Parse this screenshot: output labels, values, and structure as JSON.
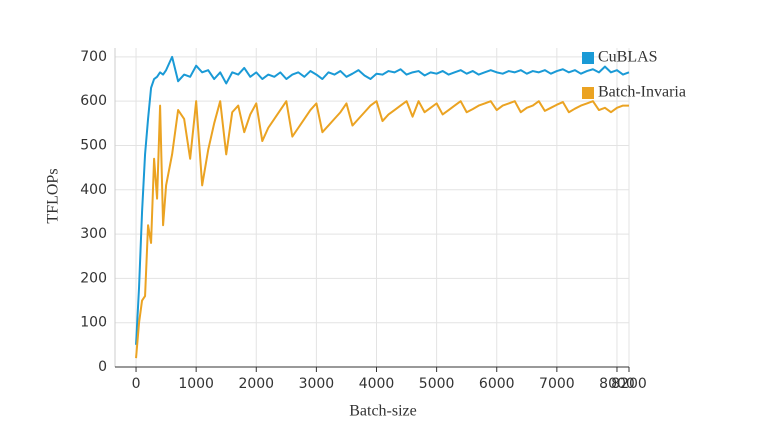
{
  "chart_data": {
    "type": "line",
    "x_label": "Batch-size",
    "y_label": "TFLOPs",
    "x": [
      0,
      50,
      100,
      150,
      200,
      250,
      300,
      350,
      400,
      450,
      500,
      600,
      700,
      800,
      900,
      1000,
      1100,
      1200,
      1300,
      1400,
      1500,
      1600,
      1700,
      1800,
      1900,
      2000,
      2100,
      2200,
      2300,
      2400,
      2500,
      2600,
      2700,
      2800,
      2900,
      3000,
      3100,
      3200,
      3300,
      3400,
      3500,
      3600,
      3700,
      3800,
      3900,
      4000,
      4100,
      4200,
      4300,
      4400,
      4500,
      4600,
      4700,
      4800,
      4900,
      5000,
      5100,
      5200,
      5300,
      5400,
      5500,
      5600,
      5700,
      5800,
      5900,
      6000,
      6100,
      6200,
      6300,
      6400,
      6500,
      6600,
      6700,
      6800,
      6900,
      7000,
      7100,
      7200,
      7300,
      7400,
      7500,
      7600,
      7700,
      7800,
      7900,
      8000,
      8100,
      8200
    ],
    "series": [
      {
        "name": "CuBLAS",
        "color": "#1a9ad6",
        "values": [
          50,
          180,
          350,
          480,
          560,
          630,
          650,
          655,
          665,
          660,
          670,
          700,
          645,
          660,
          655,
          680,
          665,
          670,
          650,
          665,
          640,
          665,
          660,
          675,
          655,
          665,
          650,
          660,
          655,
          665,
          650,
          660,
          665,
          655,
          668,
          660,
          650,
          665,
          660,
          668,
          655,
          662,
          670,
          658,
          650,
          662,
          660,
          668,
          665,
          672,
          660,
          665,
          668,
          658,
          665,
          662,
          668,
          660,
          665,
          670,
          662,
          668,
          660,
          665,
          670,
          665,
          662,
          668,
          665,
          670,
          662,
          668,
          665,
          670,
          662,
          668,
          672,
          665,
          670,
          662,
          668,
          672,
          665,
          678,
          665,
          670,
          660,
          665
        ]
      },
      {
        "name": "Batch-Invaria",
        "color": "#eba322",
        "values": [
          20,
          100,
          150,
          160,
          320,
          280,
          470,
          380,
          590,
          320,
          410,
          480,
          580,
          560,
          470,
          600,
          410,
          490,
          550,
          600,
          480,
          575,
          590,
          530,
          570,
          595,
          510,
          540,
          560,
          580,
          600,
          520,
          540,
          560,
          580,
          595,
          530,
          545,
          560,
          575,
          595,
          545,
          560,
          575,
          590,
          600,
          555,
          570,
          580,
          590,
          600,
          565,
          600,
          575,
          585,
          595,
          570,
          580,
          590,
          600,
          575,
          582,
          590,
          595,
          600,
          580,
          590,
          595,
          600,
          575,
          585,
          590,
          600,
          578,
          585,
          592,
          598,
          575,
          583,
          590,
          595,
          600,
          580,
          585,
          575,
          585,
          590,
          590
        ]
      }
    ],
    "xlim": [
      -350,
      8200
    ],
    "ylim": [
      0,
      720
    ],
    "xticks": [
      0,
      1000,
      2000,
      3000,
      4000,
      5000,
      6000,
      7000,
      8000,
      8200
    ],
    "yticks": [
      0,
      100,
      200,
      300,
      400,
      500,
      600,
      700
    ],
    "grid": true,
    "legend": "upper right"
  }
}
